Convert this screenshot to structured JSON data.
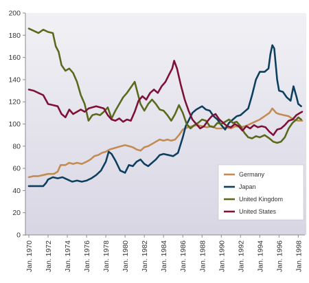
{
  "chart_data": {
    "type": "line",
    "title": "",
    "xlabel": "",
    "ylabel": "",
    "ylim": [
      0,
      200
    ],
    "yticks": [
      0,
      20,
      40,
      60,
      80,
      100,
      120,
      140,
      160,
      180,
      200
    ],
    "xlim": [
      1970,
      1998.4
    ],
    "xticks": [
      {
        "x": 1970,
        "label": "Jan. 1970"
      },
      {
        "x": 1972,
        "label": "Jan. 1972"
      },
      {
        "x": 1974,
        "label": "Jan. 1974"
      },
      {
        "x": 1976,
        "label": "Jan. 1976"
      },
      {
        "x": 1978,
        "label": "Jan. 1978"
      },
      {
        "x": 1980,
        "label": "Jan. 1980"
      },
      {
        "x": 1982,
        "label": "Jan. 1982"
      },
      {
        "x": 1984,
        "label": "Jan. 1984"
      },
      {
        "x": 1986,
        "label": "Jan. 1986"
      },
      {
        "x": 1988,
        "label": "Jan. 1988"
      },
      {
        "x": 1990,
        "label": "Jan. 1990"
      },
      {
        "x": 1992,
        "label": "Jan. 1992"
      },
      {
        "x": 1994,
        "label": "Jan. 1994"
      },
      {
        "x": 1996,
        "label": "Jan. 1996"
      },
      {
        "x": 1998,
        "label": "Jan. 1998"
      }
    ],
    "grid": false,
    "legend_position": "bottom-right",
    "series": [
      {
        "name": "Germany",
        "color": "#c28c52",
        "points": [
          [
            1970,
            52
          ],
          [
            1970.5,
            53
          ],
          [
            1971,
            53
          ],
          [
            1971.5,
            54
          ],
          [
            1972,
            55
          ],
          [
            1972.6,
            55
          ],
          [
            1973,
            57
          ],
          [
            1973.3,
            63
          ],
          [
            1973.8,
            63
          ],
          [
            1974.2,
            65
          ],
          [
            1974.6,
            64
          ],
          [
            1975,
            65
          ],
          [
            1975.5,
            64
          ],
          [
            1976,
            66
          ],
          [
            1976.4,
            68
          ],
          [
            1976.8,
            71
          ],
          [
            1977.2,
            72
          ],
          [
            1977.6,
            74
          ],
          [
            1978,
            75
          ],
          [
            1978.4,
            77
          ],
          [
            1978.8,
            78
          ],
          [
            1979.2,
            79
          ],
          [
            1979.6,
            80
          ],
          [
            1980,
            81
          ],
          [
            1980.4,
            80
          ],
          [
            1980.8,
            79
          ],
          [
            1981.2,
            77
          ],
          [
            1981.6,
            76
          ],
          [
            1982,
            79
          ],
          [
            1982.4,
            80
          ],
          [
            1982.8,
            82
          ],
          [
            1983.2,
            84
          ],
          [
            1983.6,
            86
          ],
          [
            1984,
            85
          ],
          [
            1984.4,
            86
          ],
          [
            1984.8,
            85
          ],
          [
            1985.2,
            86
          ],
          [
            1985.6,
            90
          ],
          [
            1986,
            95
          ],
          [
            1986.5,
            97
          ],
          [
            1987,
            98
          ],
          [
            1987.5,
            99
          ],
          [
            1988,
            98
          ],
          [
            1988.5,
            97
          ],
          [
            1989,
            98
          ],
          [
            1989.5,
            96
          ],
          [
            1990,
            96
          ],
          [
            1990.5,
            97
          ],
          [
            1991,
            96
          ],
          [
            1991.5,
            98
          ],
          [
            1992,
            97
          ],
          [
            1992.5,
            98
          ],
          [
            1993,
            100
          ],
          [
            1993.5,
            102
          ],
          [
            1994,
            104
          ],
          [
            1994.5,
            107
          ],
          [
            1995,
            110
          ],
          [
            1995.3,
            114
          ],
          [
            1995.7,
            110
          ],
          [
            1996,
            109
          ],
          [
            1996.5,
            108
          ],
          [
            1997,
            107
          ],
          [
            1997.5,
            104
          ],
          [
            1998,
            103
          ],
          [
            1998.4,
            103
          ]
        ]
      },
      {
        "name": "Japan",
        "color": "#0d3f5e",
        "points": [
          [
            1970,
            44
          ],
          [
            1970.5,
            44
          ],
          [
            1971,
            44
          ],
          [
            1971.5,
            44
          ],
          [
            1971.8,
            47
          ],
          [
            1972,
            50
          ],
          [
            1972.5,
            52
          ],
          [
            1973,
            51
          ],
          [
            1973.5,
            52
          ],
          [
            1974,
            50
          ],
          [
            1974.5,
            48
          ],
          [
            1975,
            49
          ],
          [
            1975.5,
            48
          ],
          [
            1976,
            49
          ],
          [
            1976.5,
            51
          ],
          [
            1977,
            54
          ],
          [
            1977.5,
            58
          ],
          [
            1978,
            66
          ],
          [
            1978.3,
            75
          ],
          [
            1978.6,
            73
          ],
          [
            1979,
            67
          ],
          [
            1979.5,
            58
          ],
          [
            1980,
            56
          ],
          [
            1980.4,
            63
          ],
          [
            1980.8,
            62
          ],
          [
            1981.2,
            66
          ],
          [
            1981.6,
            68
          ],
          [
            1982,
            64
          ],
          [
            1982.4,
            62
          ],
          [
            1982.8,
            65
          ],
          [
            1983.2,
            68
          ],
          [
            1983.6,
            72
          ],
          [
            1984,
            73
          ],
          [
            1984.5,
            72
          ],
          [
            1985,
            71
          ],
          [
            1985.5,
            74
          ],
          [
            1986,
            88
          ],
          [
            1986.3,
            98
          ],
          [
            1986.6,
            103
          ],
          [
            1987,
            110
          ],
          [
            1987.4,
            113
          ],
          [
            1987.8,
            115
          ],
          [
            1988,
            116
          ],
          [
            1988.4,
            113
          ],
          [
            1988.8,
            112
          ],
          [
            1989.2,
            107
          ],
          [
            1989.6,
            104
          ],
          [
            1990,
            99
          ],
          [
            1990.4,
            95
          ],
          [
            1990.8,
            101
          ],
          [
            1991.2,
            104
          ],
          [
            1991.6,
            107
          ],
          [
            1992,
            108
          ],
          [
            1992.4,
            111
          ],
          [
            1992.8,
            114
          ],
          [
            1993.2,
            126
          ],
          [
            1993.6,
            140
          ],
          [
            1994,
            147
          ],
          [
            1994.5,
            147
          ],
          [
            1994.9,
            150
          ],
          [
            1995.1,
            163
          ],
          [
            1995.3,
            171
          ],
          [
            1995.5,
            168
          ],
          [
            1995.8,
            140
          ],
          [
            1996,
            130
          ],
          [
            1996.4,
            129
          ],
          [
            1996.8,
            124
          ],
          [
            1997.2,
            121
          ],
          [
            1997.5,
            134
          ],
          [
            1997.8,
            125
          ],
          [
            1998,
            118
          ],
          [
            1998.3,
            116
          ]
        ]
      },
      {
        "name": "United Kingdom",
        "color": "#5a6a1c",
        "points": [
          [
            1970,
            186
          ],
          [
            1970.5,
            184
          ],
          [
            1971,
            182
          ],
          [
            1971.5,
            185
          ],
          [
            1972,
            183
          ],
          [
            1972.5,
            182
          ],
          [
            1972.8,
            170
          ],
          [
            1973.1,
            165
          ],
          [
            1973.4,
            153
          ],
          [
            1973.8,
            148
          ],
          [
            1974.2,
            150
          ],
          [
            1974.6,
            146
          ],
          [
            1975,
            138
          ],
          [
            1975.4,
            126
          ],
          [
            1975.8,
            118
          ],
          [
            1976.2,
            103
          ],
          [
            1976.6,
            108
          ],
          [
            1977,
            109
          ],
          [
            1977.4,
            108
          ],
          [
            1977.8,
            111
          ],
          [
            1978.2,
            115
          ],
          [
            1978.6,
            105
          ],
          [
            1979,
            112
          ],
          [
            1979.4,
            118
          ],
          [
            1979.8,
            124
          ],
          [
            1980.2,
            128
          ],
          [
            1980.6,
            133
          ],
          [
            1981,
            138
          ],
          [
            1981.3,
            128
          ],
          [
            1981.6,
            118
          ],
          [
            1982,
            112
          ],
          [
            1982.4,
            118
          ],
          [
            1982.8,
            122
          ],
          [
            1983.2,
            118
          ],
          [
            1983.6,
            113
          ],
          [
            1984,
            112
          ],
          [
            1984.4,
            108
          ],
          [
            1984.8,
            103
          ],
          [
            1985.2,
            109
          ],
          [
            1985.6,
            117
          ],
          [
            1986,
            110
          ],
          [
            1986.4,
            100
          ],
          [
            1986.8,
            96
          ],
          [
            1987.2,
            99
          ],
          [
            1987.6,
            101
          ],
          [
            1988,
            104
          ],
          [
            1988.4,
            103
          ],
          [
            1988.8,
            98
          ],
          [
            1989.2,
            97
          ],
          [
            1989.6,
            101
          ],
          [
            1990,
            100
          ],
          [
            1990.4,
            102
          ],
          [
            1990.8,
            104
          ],
          [
            1991.2,
            101
          ],
          [
            1991.6,
            102
          ],
          [
            1992,
            98
          ],
          [
            1992.4,
            92
          ],
          [
            1992.8,
            88
          ],
          [
            1993.2,
            87
          ],
          [
            1993.6,
            89
          ],
          [
            1994,
            88
          ],
          [
            1994.5,
            90
          ],
          [
            1995,
            87
          ],
          [
            1995.4,
            84
          ],
          [
            1995.8,
            83
          ],
          [
            1996.2,
            84
          ],
          [
            1996.6,
            88
          ],
          [
            1997,
            96
          ],
          [
            1997.4,
            101
          ],
          [
            1997.8,
            104
          ],
          [
            1998,
            106
          ],
          [
            1998.3,
            104
          ]
        ]
      },
      {
        "name": "United States",
        "color": "#7e1137",
        "points": [
          [
            1970,
            131
          ],
          [
            1970.5,
            130
          ],
          [
            1971,
            128
          ],
          [
            1971.5,
            126
          ],
          [
            1972,
            118
          ],
          [
            1972.5,
            117
          ],
          [
            1973,
            116
          ],
          [
            1973.4,
            109
          ],
          [
            1973.8,
            106
          ],
          [
            1974.2,
            113
          ],
          [
            1974.6,
            109
          ],
          [
            1975,
            111
          ],
          [
            1975.4,
            113
          ],
          [
            1975.8,
            111
          ],
          [
            1976.2,
            114
          ],
          [
            1976.6,
            115
          ],
          [
            1977,
            116
          ],
          [
            1977.4,
            115
          ],
          [
            1977.8,
            114
          ],
          [
            1978.2,
            108
          ],
          [
            1978.6,
            104
          ],
          [
            1979,
            103
          ],
          [
            1979.4,
            105
          ],
          [
            1979.8,
            102
          ],
          [
            1980.2,
            104
          ],
          [
            1980.6,
            103
          ],
          [
            1981,
            111
          ],
          [
            1981.4,
            121
          ],
          [
            1981.8,
            125
          ],
          [
            1982.2,
            122
          ],
          [
            1982.6,
            128
          ],
          [
            1983,
            131
          ],
          [
            1983.4,
            128
          ],
          [
            1983.8,
            134
          ],
          [
            1984.2,
            138
          ],
          [
            1984.6,
            145
          ],
          [
            1984.9,
            150
          ],
          [
            1985.1,
            157
          ],
          [
            1985.4,
            150
          ],
          [
            1985.8,
            135
          ],
          [
            1986.2,
            122
          ],
          [
            1986.6,
            112
          ],
          [
            1987,
            104
          ],
          [
            1987.4,
            100
          ],
          [
            1987.8,
            96
          ],
          [
            1988.2,
            98
          ],
          [
            1988.6,
            103
          ],
          [
            1989,
            107
          ],
          [
            1989.4,
            109
          ],
          [
            1989.8,
            104
          ],
          [
            1990.2,
            101
          ],
          [
            1990.6,
            98
          ],
          [
            1991,
            97
          ],
          [
            1991.4,
            100
          ],
          [
            1991.8,
            98
          ],
          [
            1992.2,
            94
          ],
          [
            1992.6,
            98
          ],
          [
            1993,
            96
          ],
          [
            1993.4,
            99
          ],
          [
            1993.8,
            97
          ],
          [
            1994.2,
            98
          ],
          [
            1994.6,
            97
          ],
          [
            1995,
            93
          ],
          [
            1995.4,
            90
          ],
          [
            1995.8,
            95
          ],
          [
            1996.2,
            96
          ],
          [
            1996.6,
            99
          ],
          [
            1997,
            103
          ],
          [
            1997.4,
            104
          ],
          [
            1997.8,
            108
          ],
          [
            1998.2,
            110
          ],
          [
            1998.4,
            111
          ]
        ]
      }
    ]
  }
}
